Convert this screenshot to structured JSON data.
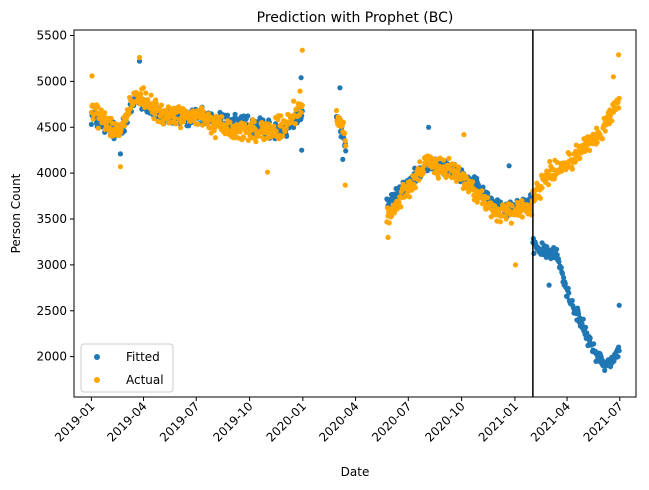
{
  "chart_data": {
    "type": "scatter",
    "title": "Prediction with Prophet (BC)",
    "xlabel": "Date",
    "ylabel": "Person Count",
    "xlim": [
      "2018-12-02",
      "2021-07-29"
    ],
    "ylim": [
      1560,
      5560
    ],
    "x_ticks": [
      "2019-01",
      "2019-04",
      "2019-07",
      "2019-10",
      "2020-01",
      "2020-04",
      "2020-07",
      "2020-10",
      "2021-01",
      "2021-04",
      "2021-07"
    ],
    "y_ticks": [
      2000,
      2500,
      3000,
      3500,
      4000,
      4500,
      5000,
      5500
    ],
    "grid": false,
    "legend_position": "lower-left",
    "vertical_line": "2021-02-01",
    "series": [
      {
        "name": "Fitted",
        "color": "#1f77b4",
        "segments": [
          {
            "from": "2019-01-01",
            "to": "2019-12-31",
            "anchors": [
              [
                "2019-01-01",
                4620
              ],
              [
                "2019-02-15",
                4430
              ],
              [
                "2019-03-20",
                4810
              ],
              [
                "2019-05-01",
                4620
              ],
              [
                "2019-07-01",
                4600
              ],
              [
                "2019-09-01",
                4560
              ],
              [
                "2019-11-01",
                4490
              ],
              [
                "2019-12-01",
                4460
              ],
              [
                "2019-12-31",
                4680
              ]
            ],
            "spread": 140,
            "extra": [
              [
                "2019-03-25",
                5220
              ],
              [
                "2019-02-20",
                4210
              ],
              [
                "2019-12-29",
                5040
              ],
              [
                "2019-12-30",
                4250
              ]
            ]
          },
          {
            "from": "2020-02-28",
            "to": "2020-03-15",
            "anchors": [
              [
                "2020-02-28",
                4650
              ],
              [
                "2020-03-15",
                4300
              ]
            ],
            "spread": 160,
            "extra": [
              [
                "2020-03-05",
                4930
              ],
              [
                "2020-03-10",
                4150
              ]
            ]
          },
          {
            "from": "2020-05-25",
            "to": "2021-01-31",
            "anchors": [
              [
                "2020-05-25",
                3650
              ],
              [
                "2020-06-25",
                3850
              ],
              [
                "2020-08-01",
                4100
              ],
              [
                "2020-09-10",
                4050
              ],
              [
                "2020-10-20",
                3900
              ],
              [
                "2020-11-20",
                3700
              ],
              [
                "2020-12-20",
                3620
              ],
              [
                "2021-01-31",
                3700
              ]
            ],
            "spread": 110,
            "extra": [
              [
                "2020-08-05",
                4500
              ],
              [
                "2020-12-22",
                4080
              ]
            ]
          },
          {
            "from": "2021-02-01",
            "to": "2021-06-30",
            "anchors": [
              [
                "2021-02-01",
                3200
              ],
              [
                "2021-03-15",
                3100
              ],
              [
                "2021-04-01",
                2700
              ],
              [
                "2021-04-20",
                2450
              ],
              [
                "2021-05-10",
                2150
              ],
              [
                "2021-06-05",
                1900
              ],
              [
                "2021-06-30",
                2050
              ]
            ],
            "spread": 110,
            "extra": [
              [
                "2021-06-30",
                2560
              ],
              [
                "2021-03-01",
                2780
              ]
            ]
          }
        ]
      },
      {
        "name": "Actual",
        "color": "#ffa500",
        "segments": [
          {
            "from": "2019-01-01",
            "to": "2019-12-31",
            "anchors": [
              [
                "2019-01-01",
                4700
              ],
              [
                "2019-02-15",
                4420
              ],
              [
                "2019-03-20",
                4850
              ],
              [
                "2019-05-01",
                4640
              ],
              [
                "2019-07-01",
                4620
              ],
              [
                "2019-09-01",
                4450
              ],
              [
                "2019-11-01",
                4470
              ],
              [
                "2019-12-01",
                4480
              ],
              [
                "2019-12-31",
                4800
              ]
            ],
            "spread": 170,
            "extra": [
              [
                "2019-01-02",
                5060
              ],
              [
                "2019-03-25",
                5260
              ],
              [
                "2019-02-20",
                4070
              ],
              [
                "2019-11-01",
                4010
              ],
              [
                "2019-12-31",
                5340
              ]
            ]
          },
          {
            "from": "2020-02-28",
            "to": "2020-03-15",
            "anchors": [
              [
                "2020-02-28",
                4600
              ],
              [
                "2020-03-15",
                4400
              ]
            ],
            "spread": 160,
            "extra": [
              [
                "2020-03-14",
                3870
              ]
            ]
          },
          {
            "from": "2020-05-25",
            "to": "2021-01-31",
            "anchors": [
              [
                "2020-05-25",
                3500
              ],
              [
                "2020-06-25",
                3800
              ],
              [
                "2020-08-01",
                4100
              ],
              [
                "2020-09-10",
                4050
              ],
              [
                "2020-10-20",
                3850
              ],
              [
                "2020-11-20",
                3600
              ],
              [
                "2020-12-20",
                3550
              ],
              [
                "2021-01-31",
                3650
              ]
            ],
            "spread": 150,
            "extra": [
              [
                "2020-05-27",
                3300
              ],
              [
                "2020-10-05",
                4420
              ],
              [
                "2021-01-02",
                3000
              ]
            ]
          },
          {
            "from": "2021-02-01",
            "to": "2021-06-30",
            "anchors": [
              [
                "2021-02-01",
                3750
              ],
              [
                "2021-03-01",
                4000
              ],
              [
                "2021-04-01",
                4100
              ],
              [
                "2021-05-01",
                4300
              ],
              [
                "2021-06-01",
                4450
              ],
              [
                "2021-06-30",
                4800
              ]
            ],
            "spread": 150,
            "extra": [
              [
                "2021-06-29",
                5290
              ],
              [
                "2021-06-20",
                5050
              ]
            ]
          }
        ]
      }
    ]
  }
}
